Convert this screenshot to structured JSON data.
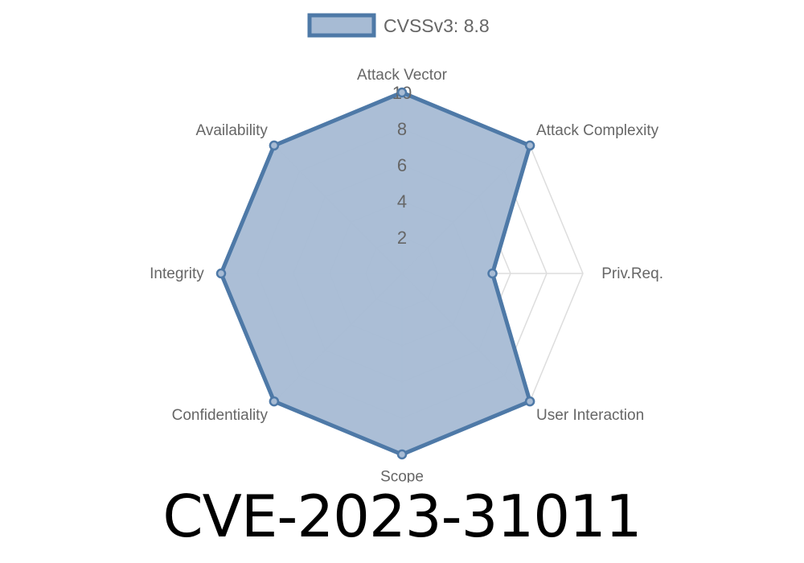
{
  "chart_data": {
    "type": "radar",
    "categories": [
      "Attack Vector",
      "Attack Complexity",
      "Priv.Req.",
      "User Interaction",
      "Scope",
      "Confidentiality",
      "Integrity",
      "Availability"
    ],
    "series": [
      {
        "name": "CVSSv3: 8.8",
        "values": [
          10,
          10,
          5,
          10,
          10,
          10,
          10,
          10
        ]
      }
    ],
    "rlim": [
      0,
      10
    ],
    "tick_labels": [
      "2",
      "4",
      "6",
      "8",
      "10"
    ],
    "ticks": [
      2,
      4,
      6,
      8,
      10
    ],
    "legend": "top",
    "grid": true,
    "colors": {
      "line": "#4e79a7",
      "fill": "#a7bbd4",
      "grid": "#dddddd",
      "text": "#666666"
    }
  },
  "footer": {
    "title": "CVE-2023-31011"
  }
}
